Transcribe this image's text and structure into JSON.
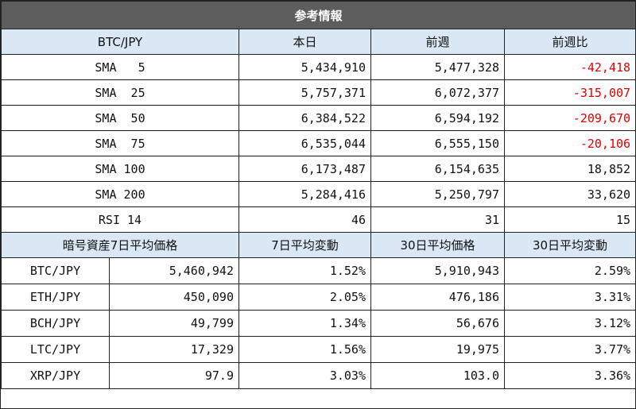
{
  "title": "参考情報",
  "sma_table": {
    "headers": [
      "BTC/JPY",
      "本日",
      "前週",
      "前週比"
    ],
    "rows": [
      {
        "label": "SMA   5",
        "today": "5,434,910",
        "last_week": "5,477,328",
        "diff": "-42,418",
        "negative": true
      },
      {
        "label": "SMA  25",
        "today": "5,757,371",
        "last_week": "6,072,377",
        "diff": "-315,007",
        "negative": true
      },
      {
        "label": "SMA  50",
        "today": "6,384,522",
        "last_week": "6,594,192",
        "diff": "-209,670",
        "negative": true
      },
      {
        "label": "SMA  75",
        "today": "6,535,044",
        "last_week": "6,555,150",
        "diff": "-20,106",
        "negative": true
      },
      {
        "label": "SMA 100",
        "today": "6,173,487",
        "last_week": "6,154,635",
        "diff": "18,852",
        "negative": false
      },
      {
        "label": "SMA 200",
        "today": "5,284,416",
        "last_week": "5,250,797",
        "diff": "33,620",
        "negative": false
      },
      {
        "label": "RSI 14",
        "today": "46",
        "last_week": "31",
        "diff": "15",
        "negative": false
      }
    ]
  },
  "avg_table": {
    "headers": [
      "暗号資産7日平均価格",
      "7日平均変動",
      "30日平均価格",
      "30日平均変動"
    ],
    "rows": [
      {
        "pair": "BTC/JPY",
        "avg7": "5,460,942",
        "chg7": "1.52%",
        "avg30": "5,910,943",
        "chg30": "2.59%"
      },
      {
        "pair": "ETH/JPY",
        "avg7": "450,090",
        "chg7": "2.05%",
        "avg30": "476,186",
        "chg30": "3.31%"
      },
      {
        "pair": "BCH/JPY",
        "avg7": "49,799",
        "chg7": "1.34%",
        "avg30": "56,676",
        "chg30": "3.12%"
      },
      {
        "pair": "LTC/JPY",
        "avg7": "17,329",
        "chg7": "1.56%",
        "avg30": "19,975",
        "chg30": "3.77%"
      },
      {
        "pair": "XRP/JPY",
        "avg7": "97.9",
        "chg7": "3.03%",
        "avg30": "103.0",
        "chg30": "3.36%"
      }
    ]
  },
  "colors": {
    "title_bg": "#5d5d5d",
    "header_bg": "#dae7f5",
    "negative": "#e00000"
  }
}
